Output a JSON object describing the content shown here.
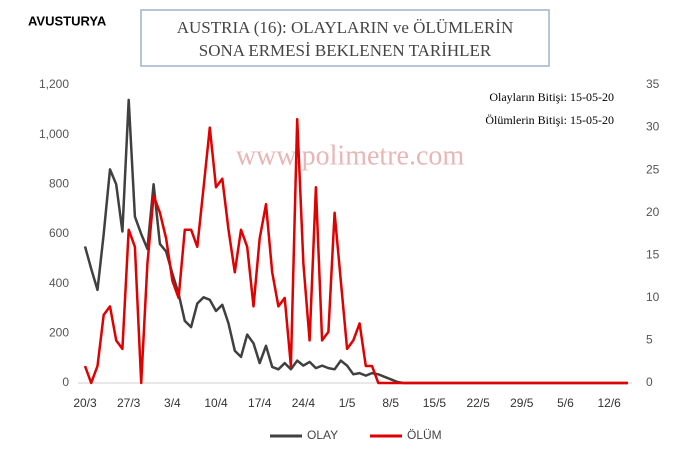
{
  "chart_data": {
    "type": "line",
    "label": "AVUSTURYA",
    "title": [
      "AUSTRIA (16): OLAYLARIN  ve ÖLÜMLERİN",
      "SONA ERMESİ BEKLENEN TARİHLER"
    ],
    "annotations": [
      "Olayların Bitişi: 15-05-20",
      "Ölümlerin Bitişi: 15-05-20"
    ],
    "watermark": "www.polimetre.com",
    "categories": [
      "20/3",
      null,
      null,
      null,
      null,
      null,
      null,
      "27/3",
      null,
      null,
      null,
      null,
      null,
      null,
      "3/4",
      null,
      null,
      null,
      null,
      null,
      null,
      "10/4",
      null,
      null,
      null,
      null,
      null,
      null,
      "17/4",
      null,
      null,
      null,
      null,
      null,
      null,
      "24/4",
      null,
      null,
      null,
      null,
      null,
      null,
      "1/5",
      null,
      null,
      null,
      null,
      null,
      null,
      "8/5",
      null,
      null,
      null,
      null,
      null,
      null,
      "15/5",
      null,
      null,
      null,
      null,
      null,
      null,
      "22/5",
      null,
      null,
      null,
      null,
      null,
      null,
      "29/5",
      null,
      null,
      null,
      null,
      null,
      null,
      "5/6",
      null,
      null,
      null,
      null,
      null,
      null,
      "12/6",
      null,
      null,
      null
    ],
    "series": [
      {
        "name": "OLAY",
        "color": "#404040",
        "values": [
          550,
          460,
          375,
          600,
          860,
          800,
          610,
          1140,
          670,
          600,
          540,
          800,
          560,
          530,
          440,
          360,
          250,
          225,
          320,
          345,
          335,
          290,
          315,
          240,
          130,
          105,
          195,
          160,
          80,
          150,
          65,
          55,
          80,
          55,
          90,
          70,
          85,
          60,
          70,
          60,
          55,
          90,
          70,
          35,
          40,
          30,
          40,
          35,
          25,
          15,
          5,
          0,
          0,
          0,
          0,
          0,
          0,
          0,
          0,
          0,
          0,
          0,
          0,
          0,
          0,
          0,
          0,
          0,
          0,
          0,
          0,
          0,
          0,
          0,
          0,
          0,
          0,
          0,
          0,
          0,
          0,
          0,
          0,
          0,
          0,
          0,
          0,
          0
        ]
      },
      {
        "name": "ÖLÜM",
        "color": "#e00000",
        "axis": "y2",
        "values": [
          2,
          0,
          2,
          8,
          9,
          5,
          4,
          18,
          16,
          0,
          14,
          22,
          20,
          17,
          12,
          10,
          18,
          18,
          16,
          23,
          30,
          23,
          24,
          18,
          13,
          18,
          16,
          9,
          17,
          21,
          13,
          9,
          10,
          2,
          31,
          14,
          5,
          23,
          5,
          6,
          20,
          12,
          4,
          5,
          7,
          2,
          2,
          0,
          0,
          0,
          0,
          0,
          0,
          0,
          0,
          0,
          0,
          0,
          0,
          0,
          0,
          0,
          0,
          0,
          0,
          0,
          0,
          0,
          0,
          0,
          0,
          0,
          0,
          0,
          0,
          0,
          0,
          0,
          0,
          0,
          0,
          0,
          0,
          0,
          0,
          0,
          0,
          0
        ]
      }
    ],
    "ylim": [
      0,
      1200
    ],
    "yticks": [
      0,
      200,
      400,
      600,
      800,
      {
        "value": 1000,
        "label": "1,000"
      },
      {
        "value": 1200,
        "label": "1,200"
      }
    ],
    "y2lim": [
      0,
      35
    ],
    "y2ticks": [
      0,
      5,
      10,
      15,
      20,
      25,
      30,
      35
    ],
    "grid": false,
    "legend": "bottom"
  }
}
